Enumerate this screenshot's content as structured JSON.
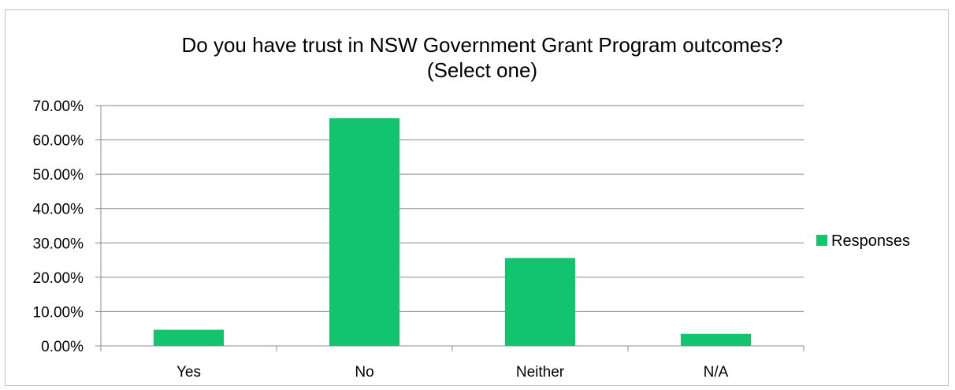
{
  "chart_data": {
    "type": "bar",
    "title": "Do you have trust in NSW Government Grant Program outcomes?",
    "subtitle": "(Select one)",
    "categories": [
      "Yes",
      "No",
      "Neither",
      "N/A"
    ],
    "series": [
      {
        "name": "Responses",
        "values": [
          4.7,
          66.3,
          25.6,
          3.5
        ],
        "color": "#12c46e"
      }
    ],
    "ylim": [
      0,
      70
    ],
    "yticks": [
      "0.00%",
      "10.00%",
      "20.00%",
      "30.00%",
      "40.00%",
      "50.00%",
      "60.00%",
      "70.00%"
    ],
    "grid": true,
    "legend": "right"
  }
}
